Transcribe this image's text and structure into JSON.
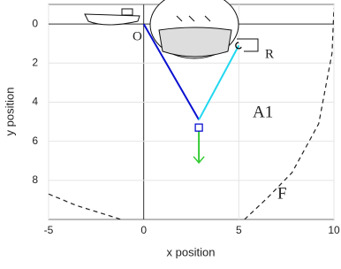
{
  "chart_data": {
    "type": "line",
    "xlabel": "x position",
    "ylabel": "y position",
    "xlim": [
      -5,
      10
    ],
    "ylim": [
      -1,
      10
    ],
    "y_inverted": true,
    "xticks": [
      -5,
      0,
      5,
      10
    ],
    "yticks": [
      0,
      2,
      4,
      6,
      8
    ],
    "grid": true,
    "series": [
      {
        "color": "#0a10d0",
        "x": [
          0,
          2.9
        ],
        "values": [
          0,
          4.9
        ]
      },
      {
        "color": "#22d8f0",
        "x": [
          5,
          2.9
        ],
        "values": [
          1.1,
          4.9
        ]
      },
      {
        "color": "#33cc33",
        "x": [
          2.9,
          2.9
        ],
        "values": [
          5.3,
          7.1
        ],
        "arrow": true
      },
      {
        "color": "#222222",
        "dashed": true,
        "x": [
          -5,
          -3.5,
          -2,
          -1.2,
          null,
          5.3,
          6.5,
          7.8,
          9.2,
          9.9,
          10
        ],
        "values": [
          8.7,
          9.3,
          9.75,
          10,
          null,
          10,
          8.9,
          7.6,
          5.1,
          1.5,
          -0.8
        ]
      }
    ],
    "markers": [
      {
        "shape": "square",
        "color": "#0a10d0",
        "x": 2.9,
        "y": 5.3
      },
      {
        "shape": "circle",
        "color": "#000000",
        "x": 5,
        "y": 1.1
      }
    ],
    "annotations": [
      "O",
      "R",
      "A1",
      "F"
    ]
  }
}
